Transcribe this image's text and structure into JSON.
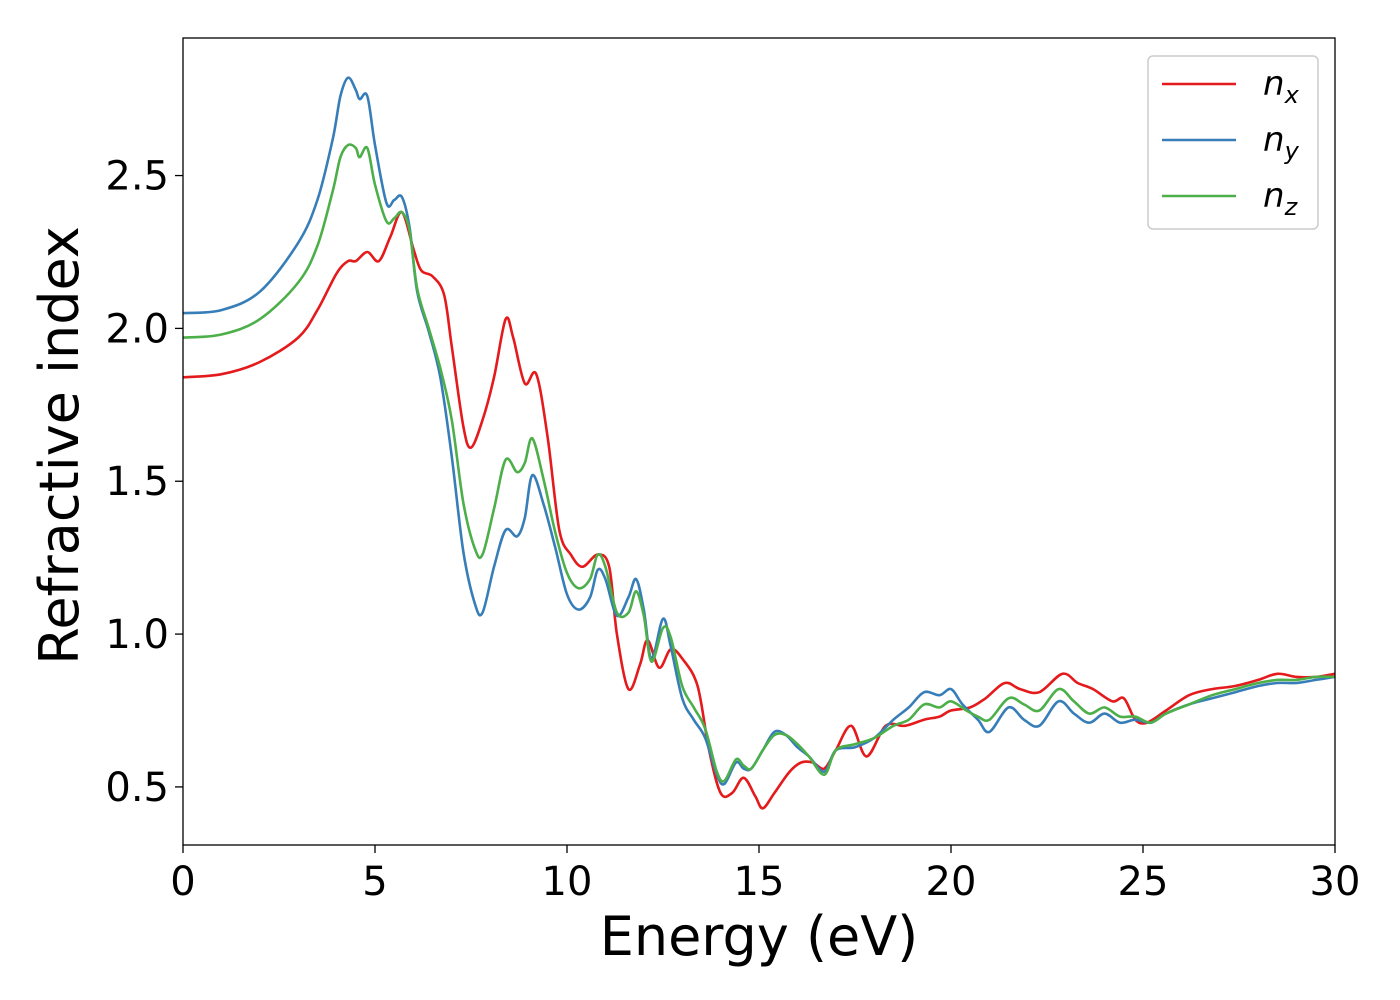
{
  "chart_data": {
    "type": "line",
    "xlabel": "Energy (eV)",
    "ylabel": "Refractive index",
    "xlim": [
      0,
      30
    ],
    "ylim": [
      0.31,
      2.95
    ],
    "xticks": [
      0,
      5,
      10,
      15,
      20,
      25,
      30
    ],
    "xtick_labels": [
      "0",
      "5",
      "10",
      "15",
      "20",
      "25",
      "30"
    ],
    "yticks": [
      0.5,
      1.0,
      1.5,
      2.0,
      2.5
    ],
    "ytick_labels": [
      "0.5",
      "1.0",
      "1.5",
      "2.0",
      "2.5"
    ],
    "grid": false,
    "legend_position": "top-right",
    "series": [
      {
        "name": "n",
        "subscript": "x",
        "color": "#e41a1c",
        "points": [
          [
            0,
            1.84
          ],
          [
            1,
            1.85
          ],
          [
            2,
            1.89
          ],
          [
            3,
            1.97
          ],
          [
            3.5,
            2.06
          ],
          [
            4,
            2.18
          ],
          [
            4.3,
            2.22
          ],
          [
            4.5,
            2.22
          ],
          [
            4.8,
            2.25
          ],
          [
            5.1,
            2.22
          ],
          [
            5.4,
            2.3
          ],
          [
            5.7,
            2.38
          ],
          [
            6.0,
            2.26
          ],
          [
            6.2,
            2.19
          ],
          [
            6.5,
            2.17
          ],
          [
            6.8,
            2.11
          ],
          [
            7.0,
            1.94
          ],
          [
            7.3,
            1.68
          ],
          [
            7.5,
            1.61
          ],
          [
            7.8,
            1.7
          ],
          [
            8.1,
            1.84
          ],
          [
            8.4,
            2.03
          ],
          [
            8.6,
            1.97
          ],
          [
            8.9,
            1.82
          ],
          [
            9.2,
            1.85
          ],
          [
            9.5,
            1.64
          ],
          [
            9.8,
            1.34
          ],
          [
            10.1,
            1.26
          ],
          [
            10.4,
            1.22
          ],
          [
            10.8,
            1.26
          ],
          [
            11.1,
            1.22
          ],
          [
            11.3,
            1.0
          ],
          [
            11.6,
            0.82
          ],
          [
            11.9,
            0.9
          ],
          [
            12.1,
            0.98
          ],
          [
            12.4,
            0.89
          ],
          [
            12.7,
            0.95
          ],
          [
            13.0,
            0.92
          ],
          [
            13.4,
            0.83
          ],
          [
            13.7,
            0.62
          ],
          [
            14.0,
            0.48
          ],
          [
            14.3,
            0.48
          ],
          [
            14.6,
            0.53
          ],
          [
            14.9,
            0.47
          ],
          [
            15.1,
            0.43
          ],
          [
            15.4,
            0.48
          ],
          [
            15.8,
            0.55
          ],
          [
            16.1,
            0.58
          ],
          [
            16.4,
            0.58
          ],
          [
            16.7,
            0.56
          ],
          [
            17.0,
            0.62
          ],
          [
            17.4,
            0.7
          ],
          [
            17.8,
            0.6
          ],
          [
            18.3,
            0.7
          ],
          [
            18.8,
            0.7
          ],
          [
            19.3,
            0.72
          ],
          [
            19.7,
            0.73
          ],
          [
            20.0,
            0.75
          ],
          [
            20.5,
            0.76
          ],
          [
            20.9,
            0.79
          ],
          [
            21.4,
            0.84
          ],
          [
            21.8,
            0.82
          ],
          [
            22.3,
            0.81
          ],
          [
            22.9,
            0.87
          ],
          [
            23.3,
            0.84
          ],
          [
            23.7,
            0.82
          ],
          [
            24.2,
            0.78
          ],
          [
            24.5,
            0.79
          ],
          [
            24.8,
            0.72
          ],
          [
            25.1,
            0.71
          ],
          [
            25.6,
            0.75
          ],
          [
            26.2,
            0.8
          ],
          [
            26.8,
            0.82
          ],
          [
            27.4,
            0.83
          ],
          [
            28.0,
            0.85
          ],
          [
            28.5,
            0.87
          ],
          [
            29.0,
            0.86
          ],
          [
            29.5,
            0.86
          ],
          [
            30,
            0.87
          ]
        ]
      },
      {
        "name": "n",
        "subscript": "y",
        "color": "#377eb8",
        "points": [
          [
            0,
            2.05
          ],
          [
            1,
            2.06
          ],
          [
            2,
            2.12
          ],
          [
            3,
            2.28
          ],
          [
            3.5,
            2.42
          ],
          [
            3.9,
            2.62
          ],
          [
            4.1,
            2.76
          ],
          [
            4.3,
            2.82
          ],
          [
            4.5,
            2.78
          ],
          [
            4.6,
            2.75
          ],
          [
            4.8,
            2.76
          ],
          [
            5.0,
            2.6
          ],
          [
            5.3,
            2.41
          ],
          [
            5.5,
            2.42
          ],
          [
            5.7,
            2.43
          ],
          [
            5.9,
            2.33
          ],
          [
            6.1,
            2.12
          ],
          [
            6.4,
            1.99
          ],
          [
            6.7,
            1.84
          ],
          [
            7.0,
            1.58
          ],
          [
            7.3,
            1.27
          ],
          [
            7.6,
            1.1
          ],
          [
            7.8,
            1.07
          ],
          [
            8.1,
            1.22
          ],
          [
            8.4,
            1.34
          ],
          [
            8.7,
            1.32
          ],
          [
            8.9,
            1.38
          ],
          [
            9.1,
            1.52
          ],
          [
            9.4,
            1.42
          ],
          [
            9.7,
            1.28
          ],
          [
            10.0,
            1.13
          ],
          [
            10.3,
            1.08
          ],
          [
            10.6,
            1.12
          ],
          [
            10.8,
            1.21
          ],
          [
            11.0,
            1.18
          ],
          [
            11.3,
            1.06
          ],
          [
            11.6,
            1.12
          ],
          [
            11.8,
            1.18
          ],
          [
            12.0,
            1.08
          ],
          [
            12.2,
            0.92
          ],
          [
            12.5,
            1.05
          ],
          [
            12.7,
            0.96
          ],
          [
            13.0,
            0.79
          ],
          [
            13.3,
            0.72
          ],
          [
            13.6,
            0.66
          ],
          [
            13.9,
            0.54
          ],
          [
            14.1,
            0.51
          ],
          [
            14.4,
            0.58
          ],
          [
            14.6,
            0.56
          ],
          [
            14.8,
            0.56
          ],
          [
            15.1,
            0.62
          ],
          [
            15.4,
            0.68
          ],
          [
            15.7,
            0.67
          ],
          [
            16.0,
            0.63
          ],
          [
            16.3,
            0.6
          ],
          [
            16.7,
            0.55
          ],
          [
            17.0,
            0.62
          ],
          [
            17.5,
            0.63
          ],
          [
            18.0,
            0.66
          ],
          [
            18.5,
            0.72
          ],
          [
            18.9,
            0.76
          ],
          [
            19.3,
            0.81
          ],
          [
            19.7,
            0.8
          ],
          [
            20.0,
            0.82
          ],
          [
            20.3,
            0.77
          ],
          [
            20.7,
            0.72
          ],
          [
            21.0,
            0.68
          ],
          [
            21.5,
            0.76
          ],
          [
            21.9,
            0.72
          ],
          [
            22.3,
            0.7
          ],
          [
            22.8,
            0.78
          ],
          [
            23.2,
            0.74
          ],
          [
            23.6,
            0.71
          ],
          [
            24.0,
            0.74
          ],
          [
            24.4,
            0.71
          ],
          [
            24.8,
            0.72
          ],
          [
            25.2,
            0.71
          ],
          [
            25.6,
            0.74
          ],
          [
            26.2,
            0.77
          ],
          [
            26.8,
            0.79
          ],
          [
            27.4,
            0.81
          ],
          [
            28.0,
            0.83
          ],
          [
            28.5,
            0.84
          ],
          [
            29.0,
            0.84
          ],
          [
            29.5,
            0.85
          ],
          [
            30,
            0.86
          ]
        ]
      },
      {
        "name": "n",
        "subscript": "z",
        "color": "#4daf4a",
        "points": [
          [
            0,
            1.97
          ],
          [
            1,
            1.98
          ],
          [
            2,
            2.03
          ],
          [
            3,
            2.15
          ],
          [
            3.5,
            2.27
          ],
          [
            3.9,
            2.45
          ],
          [
            4.1,
            2.56
          ],
          [
            4.3,
            2.6
          ],
          [
            4.5,
            2.59
          ],
          [
            4.6,
            2.56
          ],
          [
            4.8,
            2.59
          ],
          [
            5.0,
            2.47
          ],
          [
            5.3,
            2.35
          ],
          [
            5.5,
            2.36
          ],
          [
            5.7,
            2.38
          ],
          [
            5.9,
            2.32
          ],
          [
            6.1,
            2.13
          ],
          [
            6.4,
            2.0
          ],
          [
            6.7,
            1.87
          ],
          [
            7.0,
            1.7
          ],
          [
            7.3,
            1.43
          ],
          [
            7.6,
            1.28
          ],
          [
            7.8,
            1.26
          ],
          [
            8.1,
            1.41
          ],
          [
            8.4,
            1.57
          ],
          [
            8.7,
            1.53
          ],
          [
            8.9,
            1.56
          ],
          [
            9.1,
            1.64
          ],
          [
            9.4,
            1.5
          ],
          [
            9.7,
            1.33
          ],
          [
            10.0,
            1.2
          ],
          [
            10.3,
            1.15
          ],
          [
            10.6,
            1.18
          ],
          [
            10.8,
            1.26
          ],
          [
            11.0,
            1.22
          ],
          [
            11.3,
            1.07
          ],
          [
            11.6,
            1.07
          ],
          [
            11.8,
            1.14
          ],
          [
            12.0,
            1.06
          ],
          [
            12.2,
            0.91
          ],
          [
            12.5,
            1.02
          ],
          [
            12.7,
            0.99
          ],
          [
            13.0,
            0.83
          ],
          [
            13.3,
            0.76
          ],
          [
            13.6,
            0.69
          ],
          [
            13.9,
            0.55
          ],
          [
            14.1,
            0.52
          ],
          [
            14.4,
            0.59
          ],
          [
            14.6,
            0.57
          ],
          [
            14.8,
            0.56
          ],
          [
            15.1,
            0.62
          ],
          [
            15.4,
            0.67
          ],
          [
            15.7,
            0.67
          ],
          [
            16.0,
            0.64
          ],
          [
            16.3,
            0.6
          ],
          [
            16.7,
            0.54
          ],
          [
            17.0,
            0.62
          ],
          [
            17.5,
            0.64
          ],
          [
            18.0,
            0.66
          ],
          [
            18.5,
            0.7
          ],
          [
            18.9,
            0.72
          ],
          [
            19.3,
            0.77
          ],
          [
            19.7,
            0.76
          ],
          [
            20.0,
            0.78
          ],
          [
            20.4,
            0.75
          ],
          [
            20.7,
            0.73
          ],
          [
            21.0,
            0.72
          ],
          [
            21.5,
            0.79
          ],
          [
            21.9,
            0.77
          ],
          [
            22.3,
            0.75
          ],
          [
            22.8,
            0.82
          ],
          [
            23.2,
            0.78
          ],
          [
            23.6,
            0.74
          ],
          [
            24.0,
            0.76
          ],
          [
            24.4,
            0.73
          ],
          [
            24.8,
            0.73
          ],
          [
            25.2,
            0.71
          ],
          [
            25.6,
            0.74
          ],
          [
            26.2,
            0.77
          ],
          [
            26.8,
            0.8
          ],
          [
            27.4,
            0.82
          ],
          [
            28.0,
            0.84
          ],
          [
            28.5,
            0.85
          ],
          [
            29.0,
            0.85
          ],
          [
            29.5,
            0.86
          ],
          [
            30,
            0.86
          ]
        ]
      }
    ]
  }
}
